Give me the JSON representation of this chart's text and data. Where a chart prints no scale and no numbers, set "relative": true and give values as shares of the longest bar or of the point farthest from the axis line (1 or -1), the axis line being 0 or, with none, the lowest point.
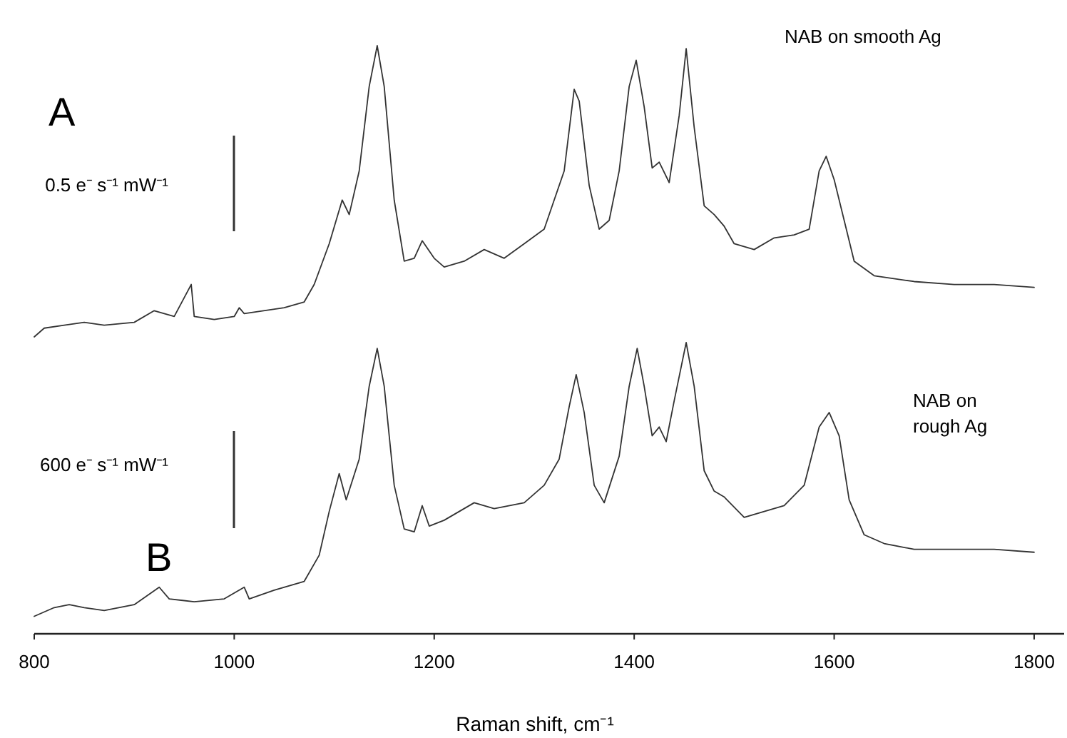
{
  "chart_data": [
    {
      "type": "line",
      "title": "A",
      "relative": true,
      "xlim": [
        800,
        1830
      ],
      "tick_labels": false,
      "annotations": [
        "NAB on smooth Ag",
        "0.5 e⁻ s⁻¹ mW⁻¹"
      ],
      "x": [
        800,
        810,
        830,
        850,
        870,
        900,
        920,
        940,
        957,
        960,
        980,
        1000,
        1005,
        1010,
        1050,
        1070,
        1080,
        1095,
        1108,
        1115,
        1125,
        1135,
        1143,
        1150,
        1160,
        1170,
        1180,
        1188,
        1200,
        1210,
        1230,
        1250,
        1270,
        1290,
        1310,
        1330,
        1340,
        1345,
        1355,
        1365,
        1375,
        1385,
        1395,
        1402,
        1410,
        1418,
        1425,
        1435,
        1445,
        1452,
        1460,
        1470,
        1480,
        1490,
        1500,
        1520,
        1540,
        1560,
        1575,
        1585,
        1592,
        1600,
        1610,
        1620,
        1640,
        1680,
        1720,
        1760,
        1800
      ],
      "series": [
        {
          "color": "#333333",
          "values": [
            0,
            0.03,
            0.04,
            0.05,
            0.04,
            0.05,
            0.09,
            0.07,
            0.18,
            0.07,
            0.06,
            0.07,
            0.1,
            0.08,
            0.1,
            0.12,
            0.18,
            0.32,
            0.47,
            0.42,
            0.57,
            0.86,
            1,
            0.86,
            0.47,
            0.26,
            0.27,
            0.33,
            0.27,
            0.24,
            0.26,
            0.3,
            0.27,
            0.32,
            0.37,
            0.57,
            0.85,
            0.81,
            0.52,
            0.37,
            0.4,
            0.57,
            0.86,
            0.95,
            0.79,
            0.58,
            0.6,
            0.53,
            0.76,
            0.99,
            0.72,
            0.45,
            0.42,
            0.38,
            0.32,
            0.3,
            0.34,
            0.35,
            0.37,
            0.57,
            0.62,
            0.54,
            0.4,
            0.26,
            0.21,
            0.19,
            0.18,
            0.18,
            0.17
          ]
        }
      ]
    },
    {
      "type": "line",
      "title": "B",
      "relative": true,
      "xlim": [
        800,
        1830
      ],
      "xticks": [
        800,
        1000,
        1200,
        1400,
        1600,
        1800
      ],
      "tick_labels": "x",
      "xlabel": "Raman shift, cm⁻¹",
      "annotations": [
        "NAB on rough Ag",
        "600 e⁻ s⁻¹ mW⁻¹"
      ],
      "x": [
        800,
        820,
        835,
        850,
        870,
        900,
        925,
        935,
        960,
        990,
        1010,
        1015,
        1040,
        1070,
        1085,
        1095,
        1105,
        1112,
        1125,
        1135,
        1143,
        1150,
        1160,
        1170,
        1180,
        1188,
        1195,
        1210,
        1240,
        1260,
        1290,
        1310,
        1325,
        1335,
        1342,
        1350,
        1360,
        1370,
        1385,
        1395,
        1403,
        1410,
        1418,
        1425,
        1432,
        1440,
        1452,
        1460,
        1470,
        1480,
        1490,
        1510,
        1530,
        1550,
        1570,
        1585,
        1595,
        1605,
        1615,
        1630,
        1650,
        1680,
        1720,
        1760,
        1800
      ],
      "series": [
        {
          "color": "#333333",
          "values": [
            0.06,
            0.09,
            0.1,
            0.09,
            0.08,
            0.1,
            0.16,
            0.12,
            0.11,
            0.12,
            0.16,
            0.12,
            0.15,
            0.18,
            0.27,
            0.42,
            0.55,
            0.46,
            0.6,
            0.85,
            0.98,
            0.85,
            0.51,
            0.36,
            0.35,
            0.44,
            0.37,
            0.39,
            0.45,
            0.43,
            0.45,
            0.51,
            0.6,
            0.78,
            0.89,
            0.76,
            0.51,
            0.45,
            0.61,
            0.85,
            0.98,
            0.85,
            0.68,
            0.71,
            0.66,
            0.8,
            1,
            0.85,
            0.56,
            0.49,
            0.47,
            0.4,
            0.42,
            0.44,
            0.51,
            0.71,
            0.76,
            0.68,
            0.46,
            0.34,
            0.31,
            0.29,
            0.29,
            0.29,
            0.28
          ]
        }
      ]
    }
  ]
}
